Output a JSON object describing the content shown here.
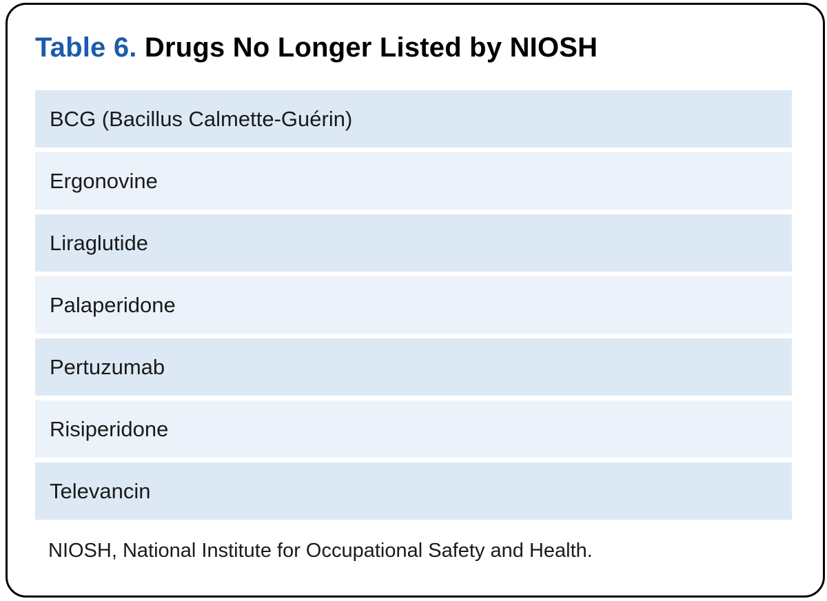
{
  "title": {
    "label": "Table 6.",
    "text": "Drugs No Longer Listed by NIOSH"
  },
  "table": {
    "rows": [
      "BCG (Bacillus Calmette-Guérin)",
      "Ergonovine",
      "Liraglutide",
      "Palaperidone",
      "Pertuzumab",
      "Risiperidone",
      "Televancin"
    ]
  },
  "footnote": "NIOSH, National Institute for Occupational Safety and Health.",
  "colors": {
    "accent_blue": "#1b5cac",
    "row_dark": "#dce9f5",
    "row_light": "#ecf2fa",
    "text": "#1a1a1a",
    "border": "#000000"
  }
}
